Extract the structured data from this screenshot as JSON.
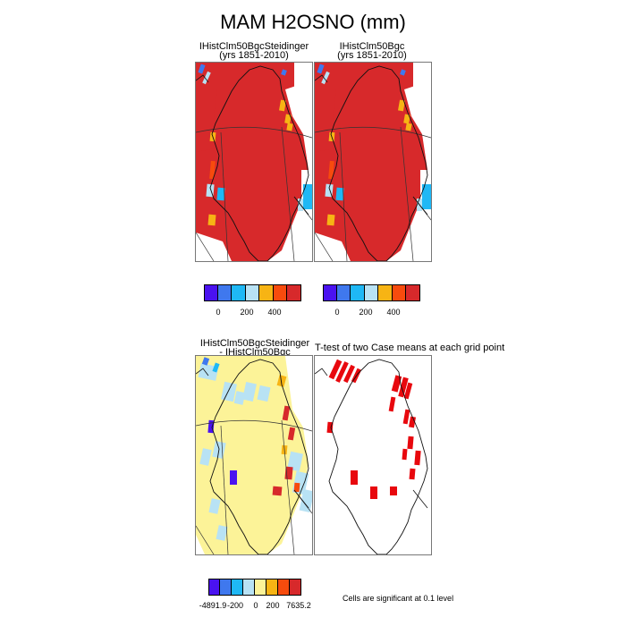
{
  "title": "MAM H2OSNO (mm)",
  "panels": [
    {
      "id": "tl",
      "title_line1": "IHistClm50BgcSteidinger",
      "title_line2": "(yrs 1851-2010)"
    },
    {
      "id": "tr",
      "title_line1": "IHistClm50Bgc",
      "title_line2": "(yrs 1851-2010)"
    },
    {
      "id": "bl",
      "title_line1": "IHistClm50BgcSteidinger",
      "title_line2": "- IHistClm50Bgc"
    },
    {
      "id": "br",
      "title_line1": "T-test of two Case means at each grid point"
    }
  ],
  "colorbar_top": {
    "colors": [
      "#4a12f0",
      "#3f78ee",
      "#1fb8f5",
      "#b8e2f4",
      "#f7b414",
      "#f74b0d",
      "#d7292b"
    ],
    "tick_labels": [
      "0",
      "200",
      "400"
    ]
  },
  "colorbar_bottom": {
    "colors": [
      "#4a12f0",
      "#3f78ee",
      "#1fb8f5",
      "#b8e2f4",
      "#fcf398",
      "#f7b414",
      "#f74b0d",
      "#d7292b"
    ],
    "tick_labels": [
      "-4891.9",
      "-200",
      "0",
      "200",
      "7635.2"
    ]
  },
  "significance_note": "Cells are significant at 0.1 level",
  "map_colors": {
    "dark_red": "#d7292b",
    "orange": "#f7b414",
    "red_orange": "#f74b0d",
    "light_blue": "#b8e2f4",
    "cyan": "#1fb8f5",
    "blue": "#3f78ee",
    "purple": "#4a12f0",
    "yellow": "#fcf398",
    "sig_red": "#e8080e"
  }
}
